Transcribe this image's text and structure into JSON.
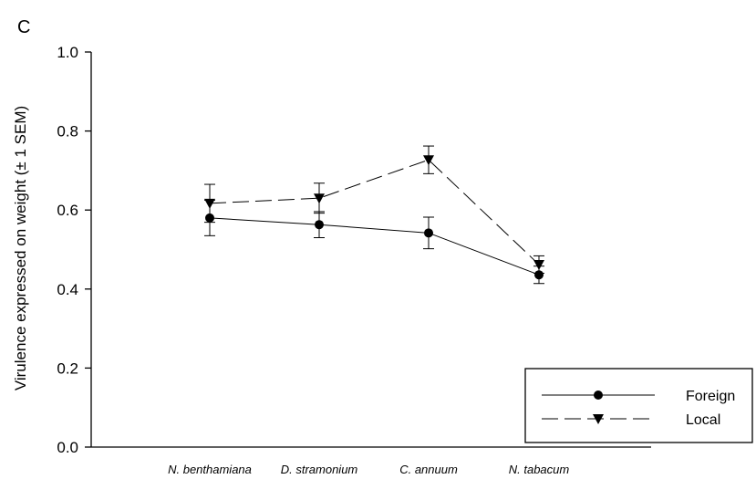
{
  "chart_data": {
    "type": "line",
    "panel_label": "C",
    "ylabel": "Virulence expressed on weight (± 1 SEM)",
    "xlabel": "",
    "categories": [
      "N. benthamiana",
      "D. stramonium",
      "C. annuum",
      "N. tabacum"
    ],
    "ylim": [
      0.0,
      1.0
    ],
    "yticks": [
      "0.0",
      "0.2",
      "0.4",
      "0.6",
      "0.8",
      "1.0"
    ],
    "grid": false,
    "legend_position": "bottom-right",
    "series": [
      {
        "name": "Foreign",
        "marker": "circle",
        "line_style": "solid",
        "values": [
          0.58,
          0.563,
          0.542,
          0.436
        ],
        "errors": [
          0.045,
          0.033,
          0.04,
          0.022
        ]
      },
      {
        "name": "Local",
        "marker": "triangle-down",
        "line_style": "dashed",
        "values": [
          0.617,
          0.63,
          0.727,
          0.462
        ],
        "errors": [
          0.048,
          0.038,
          0.035,
          0.022
        ]
      }
    ]
  }
}
